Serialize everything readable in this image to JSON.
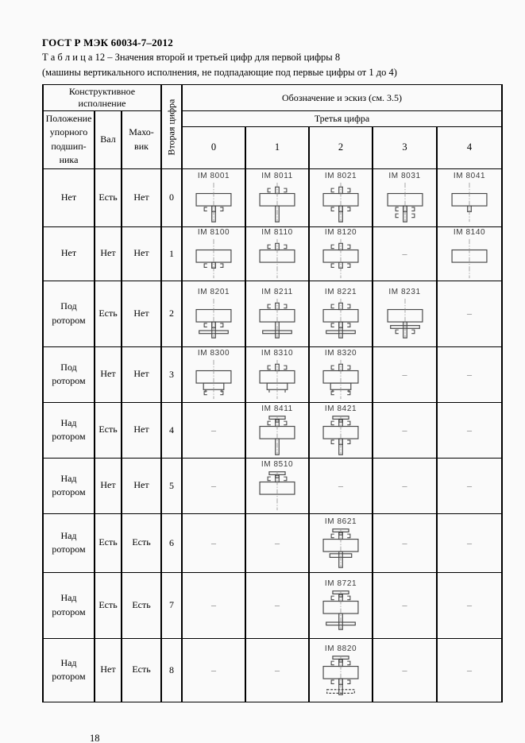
{
  "colors": {
    "page_bg": "#fafafa",
    "ink": "#000000",
    "sketch_stroke": "#4a4a4a",
    "centerline": "#8a8a8a",
    "dash_color": "#6e6e6e"
  },
  "header": {
    "doc_title": "ГОСТ Р МЭК 60034-7–2012",
    "table_caption": "Т а б л и ц а  12 – Значения второй и третьей цифр для первой цифры 8",
    "table_subcaption": "(машины вертикального исполнения, не подпадающие под первые цифры от 1 до 4)"
  },
  "table": {
    "group_headers": {
      "construction": "Конструктивное исполнение",
      "designation": "Обозначение и эскиз (см. 3.5)",
      "third_digit": "Третья цифра",
      "second_digit": "Вторая цифра"
    },
    "columns": {
      "bearing_position": "Положение\nупорного\nподшип-\nника",
      "shaft": "Вал",
      "flywheel": "Махо-\nвик",
      "digits": [
        "0",
        "1",
        "2",
        "3",
        "4"
      ]
    },
    "rows": [
      {
        "bearing": "Нет",
        "shaft": "Есть",
        "flywheel": "Нет",
        "second_digit": "0",
        "cells": [
          {
            "code": "IM 8001",
            "sketch": [
              "body",
              "shaftDown",
              "marksBelow"
            ]
          },
          {
            "code": "IM 8011",
            "sketch": [
              "marksAbove",
              "body",
              "shaftDown"
            ]
          },
          {
            "code": "IM 8021",
            "sketch": [
              "marksAbove",
              "body",
              "shaftDown",
              "marksBelow"
            ]
          },
          {
            "code": "IM 8031",
            "sketch": [
              "body",
              "shaftDown",
              "marksBelow",
              "marksLow"
            ]
          },
          {
            "code": "IM 8041",
            "sketch": [
              "body",
              "stubDown"
            ]
          }
        ]
      },
      {
        "bearing": "Нет",
        "shaft": "Нет",
        "flywheel": "Нет",
        "second_digit": "1",
        "cells": [
          {
            "code": "IM 8100",
            "sketch": [
              "body",
              "marksBelow",
              "stubDown"
            ]
          },
          {
            "code": "IM 8110",
            "sketch": [
              "marksAbove",
              "body"
            ]
          },
          {
            "code": "IM 8120",
            "sketch": [
              "marksAbove",
              "body",
              "marksBelow"
            ]
          },
          {
            "dash": "–"
          },
          {
            "code": "IM 8140",
            "sketch": [
              "body"
            ]
          }
        ]
      },
      {
        "bearing": "Под\nротором",
        "shaft": "Есть",
        "flywheel": "Нет",
        "second_digit": "2",
        "cells": [
          {
            "code": "IM 8201",
            "sketch": [
              "body",
              "shaftDown",
              "marksBelow",
              "flangeLow"
            ]
          },
          {
            "code": "IM 8211",
            "sketch": [
              "marksAbove",
              "body",
              "shaftDown",
              "flangeLow"
            ]
          },
          {
            "code": "IM 8221",
            "sketch": [
              "marksAbove",
              "body",
              "shaftDown",
              "marksBelow",
              "flangeLow"
            ]
          },
          {
            "code": "IM 8231",
            "sketch": [
              "body",
              "shaftDown",
              "flange",
              "marksLow"
            ]
          },
          {
            "dash": "–"
          }
        ]
      },
      {
        "bearing": "Под\nротором",
        "shaft": "Нет",
        "flywheel": "Нет",
        "second_digit": "3",
        "cells": [
          {
            "code": "IM 8300",
            "sketch": [
              "body",
              "foot",
              "marksLow"
            ]
          },
          {
            "code": "IM 8310",
            "sketch": [
              "marksAbove",
              "body",
              "foot"
            ]
          },
          {
            "code": "IM 8320",
            "sketch": [
              "marksAbove",
              "body",
              "foot",
              "marksLow"
            ]
          },
          {
            "dash": "–"
          },
          {
            "dash": "–"
          }
        ]
      },
      {
        "bearing": "Над\nротором",
        "shaft": "Есть",
        "flywheel": "Нет",
        "second_digit": "4",
        "cells": [
          {
            "dash": "–"
          },
          {
            "code": "IM 8411",
            "sketch": [
              "topBar",
              "marksAbove",
              "body",
              "shaftDown"
            ]
          },
          {
            "code": "IM 8421",
            "sketch": [
              "topBar",
              "marksAbove",
              "body",
              "shaftDown",
              "marksBelow"
            ]
          },
          {
            "dash": "–"
          },
          {
            "dash": "–"
          }
        ]
      },
      {
        "bearing": "Над\nротором",
        "shaft": "Нет",
        "flywheel": "Нет",
        "second_digit": "5",
        "cells": [
          {
            "dash": "–"
          },
          {
            "code": "IM 8510",
            "sketch": [
              "topBar",
              "marksAbove",
              "body"
            ]
          },
          {
            "dash": "–"
          },
          {
            "dash": "–"
          },
          {
            "dash": "–"
          }
        ]
      },
      {
        "bearing": "Над\nротором",
        "shaft": "Есть",
        "flywheel": "Есть",
        "second_digit": "6",
        "cells": [
          {
            "dash": "–"
          },
          {
            "dash": "–"
          },
          {
            "code": "IM 8621",
            "sketch": [
              "topBar",
              "marksAbove",
              "body",
              "barBelow",
              "shaftDown"
            ]
          },
          {
            "dash": "–"
          },
          {
            "dash": "–"
          }
        ]
      },
      {
        "bearing": "Над\nротором",
        "shaft": "Есть",
        "flywheel": "Есть",
        "second_digit": "7",
        "cells": [
          {
            "dash": "–"
          },
          {
            "dash": "–"
          },
          {
            "code": "IM 8721",
            "sketch": [
              "topBar",
              "marksAbove",
              "body",
              "shaftDown",
              "flangeLow"
            ]
          },
          {
            "dash": "–"
          },
          {
            "dash": "–"
          }
        ]
      },
      {
        "bearing": "Над\nротором",
        "shaft": "Нет",
        "flywheel": "Есть",
        "second_digit": "8",
        "cells": [
          {
            "dash": "–"
          },
          {
            "dash": "–"
          },
          {
            "code": "IM 8820",
            "sketch": [
              "topBar",
              "marksAbove",
              "body",
              "shaftDown",
              "marksBelow",
              "baseDashed"
            ]
          },
          {
            "dash": "–"
          },
          {
            "dash": "–"
          }
        ]
      }
    ]
  },
  "footer": {
    "page_number": "18"
  }
}
